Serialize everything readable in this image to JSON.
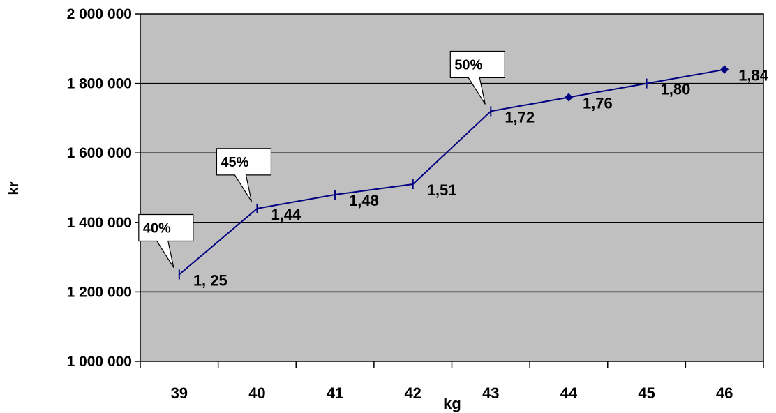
{
  "chart_data": {
    "type": "line",
    "title": "",
    "xlabel": "kg",
    "ylabel": "kr",
    "x": [
      39,
      40,
      41,
      42,
      43,
      44,
      45,
      46
    ],
    "xticks": [
      "39",
      "40",
      "41",
      "42",
      "43",
      "44",
      "45",
      "46"
    ],
    "ylim": [
      1000000,
      2000000
    ],
    "yticks": [
      {
        "value": 1000000,
        "label": "1 000 000"
      },
      {
        "value": 1200000,
        "label": "1 200 000"
      },
      {
        "value": 1400000,
        "label": "1 400 000"
      },
      {
        "value": 1600000,
        "label": "1 600 000"
      },
      {
        "value": 1800000,
        "label": "1 800 000"
      },
      {
        "value": 2000000,
        "label": "2 000 000"
      }
    ],
    "grid": true,
    "legend": "none",
    "series": [
      {
        "values": [
          1250000,
          1440000,
          1480000,
          1510000,
          1720000,
          1760000,
          1800000,
          1840000
        ],
        "data_labels": [
          "1, 25",
          "1,44",
          "1,48",
          "1,51",
          "1,72",
          "1,76",
          "1,80",
          "1,84"
        ],
        "markers": [
          "dash",
          "dash",
          "dash",
          "dash",
          "dash",
          "diamond",
          "dash",
          "diamond"
        ]
      }
    ],
    "annotations": [
      {
        "text": "40%",
        "x": 39
      },
      {
        "text": "45%",
        "x": 40
      },
      {
        "text": "50%",
        "x": 43
      }
    ],
    "colors": {
      "line": "#000080",
      "plot_bg": "#c0c0c0",
      "grid": "#000000"
    }
  }
}
